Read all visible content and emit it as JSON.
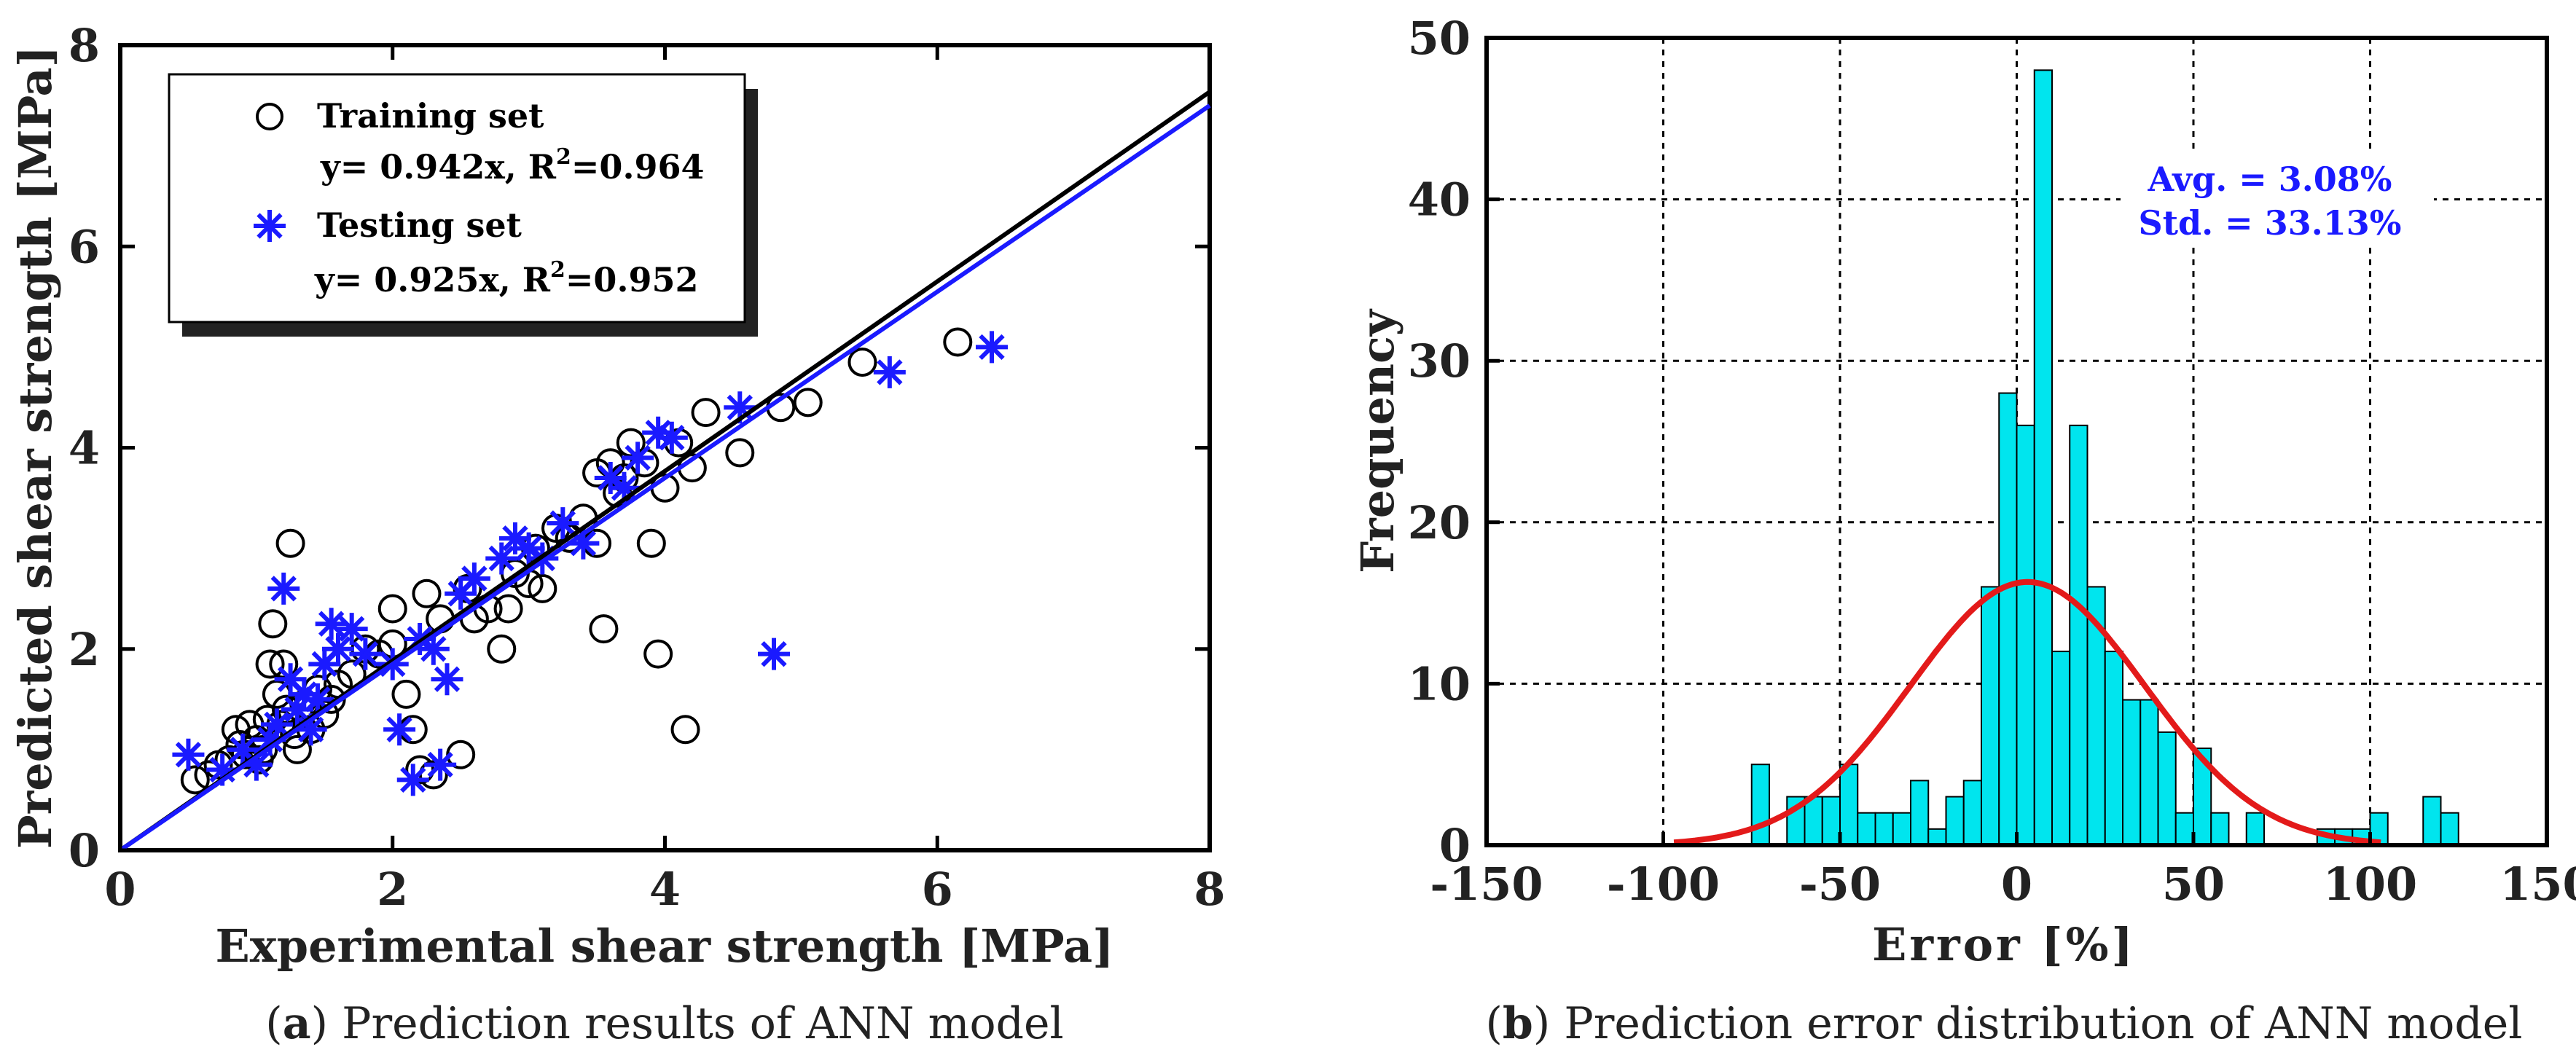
{
  "chart_data": [
    {
      "type": "scatter",
      "panel_label": "a",
      "caption": "Prediction results of ANN model",
      "xlabel": "Experimental shear strength [MPa]",
      "ylabel": "Predicted shear strength [MPa]",
      "xlim": [
        0,
        8
      ],
      "ylim": [
        0,
        8
      ],
      "xticks": [
        "0",
        "2",
        "4",
        "6",
        "8"
      ],
      "yticks": [
        "0",
        "2",
        "4",
        "6",
        "8"
      ],
      "grid": false,
      "legend_position": "top-left",
      "series": [
        {
          "name": "Training set",
          "fit_label": "y= 0.942x, R",
          "r2_sup": "2",
          "fit_value": "=0.964",
          "slope": 0.942,
          "marker": "circle",
          "color": "#000000",
          "points": [
            [
              0.55,
              0.7
            ],
            [
              0.65,
              0.75
            ],
            [
              0.72,
              0.85
            ],
            [
              0.8,
              0.9
            ],
            [
              0.85,
              1.2
            ],
            [
              0.88,
              1.05
            ],
            [
              0.92,
              0.95
            ],
            [
              0.95,
              1.25
            ],
            [
              1.0,
              1.1
            ],
            [
              1.02,
              0.9
            ],
            [
              1.05,
              1.0
            ],
            [
              1.08,
              1.3
            ],
            [
              1.1,
              1.85
            ],
            [
              1.12,
              2.25
            ],
            [
              1.15,
              1.55
            ],
            [
              1.18,
              1.25
            ],
            [
              1.2,
              1.85
            ],
            [
              1.22,
              1.4
            ],
            [
              1.25,
              3.05
            ],
            [
              1.28,
              1.15
            ],
            [
              1.3,
              1.0
            ],
            [
              1.35,
              1.45
            ],
            [
              1.4,
              1.2
            ],
            [
              1.45,
              1.6
            ],
            [
              1.5,
              1.35
            ],
            [
              1.55,
              1.5
            ],
            [
              1.6,
              1.65
            ],
            [
              1.7,
              1.75
            ],
            [
              1.8,
              2.0
            ],
            [
              1.9,
              1.95
            ],
            [
              2.0,
              2.05
            ],
            [
              2.0,
              2.4
            ],
            [
              2.1,
              1.55
            ],
            [
              2.15,
              1.2
            ],
            [
              2.2,
              0.8
            ],
            [
              2.25,
              2.55
            ],
            [
              2.3,
              0.75
            ],
            [
              2.35,
              2.3
            ],
            [
              2.5,
              0.95
            ],
            [
              2.55,
              2.6
            ],
            [
              2.6,
              2.3
            ],
            [
              2.7,
              2.4
            ],
            [
              2.8,
              2.0
            ],
            [
              2.85,
              2.4
            ],
            [
              2.9,
              2.75
            ],
            [
              3.0,
              2.65
            ],
            [
              3.05,
              3.0
            ],
            [
              3.1,
              2.6
            ],
            [
              3.2,
              3.2
            ],
            [
              3.3,
              3.1
            ],
            [
              3.4,
              3.3
            ],
            [
              3.5,
              3.05
            ],
            [
              3.5,
              3.75
            ],
            [
              3.55,
              2.2
            ],
            [
              3.6,
              3.85
            ],
            [
              3.65,
              3.55
            ],
            [
              3.7,
              3.7
            ],
            [
              3.75,
              4.05
            ],
            [
              3.85,
              3.85
            ],
            [
              3.9,
              3.05
            ],
            [
              3.95,
              1.95
            ],
            [
              4.0,
              3.6
            ],
            [
              4.1,
              4.05
            ],
            [
              4.15,
              1.2
            ],
            [
              4.2,
              3.8
            ],
            [
              4.3,
              4.35
            ],
            [
              4.55,
              3.95
            ],
            [
              4.85,
              4.4
            ],
            [
              5.05,
              4.45
            ],
            [
              5.45,
              4.85
            ],
            [
              6.15,
              5.05
            ]
          ]
        },
        {
          "name": "Testing set",
          "fit_label": "y= 0.925x, R",
          "r2_sup": "2",
          "fit_value": "=0.952",
          "slope": 0.925,
          "marker": "asterisk",
          "color": "#1a1aff",
          "points": [
            [
              0.5,
              0.95
            ],
            [
              0.75,
              0.8
            ],
            [
              0.9,
              1.0
            ],
            [
              1.0,
              0.85
            ],
            [
              1.1,
              1.1
            ],
            [
              1.15,
              1.25
            ],
            [
              1.2,
              2.6
            ],
            [
              1.25,
              1.7
            ],
            [
              1.3,
              1.4
            ],
            [
              1.35,
              1.55
            ],
            [
              1.4,
              1.2
            ],
            [
              1.45,
              1.5
            ],
            [
              1.5,
              1.85
            ],
            [
              1.55,
              2.25
            ],
            [
              1.6,
              2.0
            ],
            [
              1.7,
              2.2
            ],
            [
              1.8,
              1.95
            ],
            [
              2.0,
              1.85
            ],
            [
              2.05,
              1.2
            ],
            [
              2.15,
              0.7
            ],
            [
              2.2,
              2.1
            ],
            [
              2.3,
              2.0
            ],
            [
              2.35,
              0.85
            ],
            [
              2.4,
              1.7
            ],
            [
              2.5,
              2.55
            ],
            [
              2.6,
              2.7
            ],
            [
              2.8,
              2.9
            ],
            [
              2.9,
              3.1
            ],
            [
              3.0,
              3.0
            ],
            [
              3.1,
              2.9
            ],
            [
              3.25,
              3.25
            ],
            [
              3.4,
              3.05
            ],
            [
              3.6,
              3.7
            ],
            [
              3.7,
              3.6
            ],
            [
              3.8,
              3.9
            ],
            [
              3.95,
              4.15
            ],
            [
              4.05,
              4.1
            ],
            [
              4.55,
              4.4
            ],
            [
              4.8,
              1.95
            ],
            [
              5.65,
              4.75
            ],
            [
              6.4,
              5.0
            ]
          ]
        }
      ]
    },
    {
      "type": "histogram",
      "panel_label": "b",
      "caption": "Prediction error distribution of ANN model",
      "xlabel": "Error [%]",
      "ylabel": "Frequency",
      "xlim": [
        -150,
        150
      ],
      "ylim": [
        0,
        50
      ],
      "xticks": [
        "-150",
        "-100",
        "-50",
        "0",
        "50",
        "100",
        "150"
      ],
      "yticks": [
        "0",
        "10",
        "20",
        "30",
        "40",
        "50"
      ],
      "grid": true,
      "bin_width": 5,
      "bins": [
        {
          "left": -75,
          "count": 5
        },
        {
          "left": -70,
          "count": 0
        },
        {
          "left": -65,
          "count": 3
        },
        {
          "left": -60,
          "count": 3
        },
        {
          "left": -55,
          "count": 3
        },
        {
          "left": -50,
          "count": 5
        },
        {
          "left": -45,
          "count": 2
        },
        {
          "left": -40,
          "count": 2
        },
        {
          "left": -35,
          "count": 2
        },
        {
          "left": -30,
          "count": 4
        },
        {
          "left": -25,
          "count": 1
        },
        {
          "left": -20,
          "count": 3
        },
        {
          "left": -15,
          "count": 4
        },
        {
          "left": -10,
          "count": 16
        },
        {
          "left": -5,
          "count": 28
        },
        {
          "left": 0,
          "count": 26
        },
        {
          "left": 5,
          "count": 48
        },
        {
          "left": 10,
          "count": 12
        },
        {
          "left": 15,
          "count": 26
        },
        {
          "left": 20,
          "count": 16
        },
        {
          "left": 25,
          "count": 12
        },
        {
          "left": 30,
          "count": 9
        },
        {
          "left": 35,
          "count": 9
        },
        {
          "left": 40,
          "count": 7
        },
        {
          "left": 45,
          "count": 2
        },
        {
          "left": 50,
          "count": 6
        },
        {
          "left": 55,
          "count": 2
        },
        {
          "left": 60,
          "count": 0
        },
        {
          "left": 65,
          "count": 2
        },
        {
          "left": 70,
          "count": 0
        },
        {
          "left": 75,
          "count": 0
        },
        {
          "left": 80,
          "count": 0
        },
        {
          "left": 85,
          "count": 1
        },
        {
          "left": 90,
          "count": 1
        },
        {
          "left": 95,
          "count": 1
        },
        {
          "left": 100,
          "count": 2
        },
        {
          "left": 105,
          "count": 0
        },
        {
          "left": 110,
          "count": 0
        },
        {
          "left": 115,
          "count": 3
        },
        {
          "left": 120,
          "count": 2
        }
      ],
      "bar_color": "#00e5ee",
      "normal_curve": {
        "mean": 3.08,
        "std": 33.13,
        "peak": 16.3,
        "range": [
          -97,
          103
        ],
        "color": "#e31a1a"
      },
      "annotation": [
        "Avg. = 3.08%",
        "Std. = 33.13%"
      ]
    }
  ]
}
